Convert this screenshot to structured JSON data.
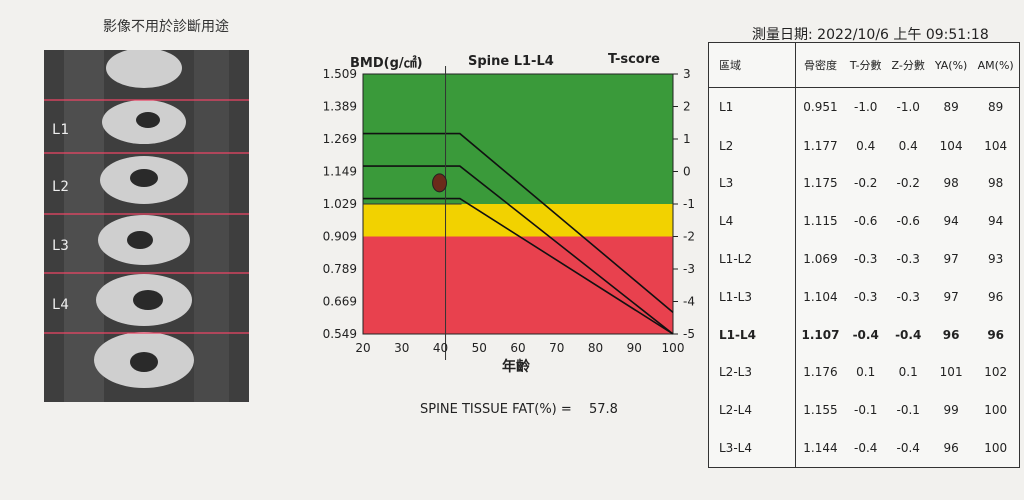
{
  "image_caption": "影像不用於診斷用途",
  "spine_levels": [
    "L1",
    "L2",
    "L3",
    "L4"
  ],
  "chart_data": {
    "type": "area",
    "title": "Spine L1-L4",
    "ylabel": "BMD(g/㎠)",
    "y2label": "T-score",
    "xlabel": "年齡",
    "x_ticks": [
      20,
      30,
      40,
      50,
      60,
      70,
      80,
      90,
      100
    ],
    "y_ticks": [
      "1.509",
      "1.389",
      "1.269",
      "1.149",
      "1.029",
      "0.909",
      "0.789",
      "0.669",
      "0.549"
    ],
    "y2_ticks": [
      "3",
      "2",
      "1",
      "0",
      "-1",
      "-2",
      "-3",
      "-4",
      "-5"
    ],
    "xlim": [
      20,
      100
    ],
    "ylim": [
      0.549,
      1.509
    ],
    "bands": [
      {
        "name": "normal",
        "from": 1.029,
        "to": 1.509,
        "color": "#3a9a3a"
      },
      {
        "name": "osteopenia",
        "from": 0.909,
        "to": 1.029,
        "color": "#f2d200"
      },
      {
        "name": "osteoporosis",
        "from": 0.549,
        "to": 0.909,
        "color": "#e8414e"
      }
    ],
    "reference_curves": [
      {
        "x": [
          20,
          45,
          100
        ],
        "y": [
          1.289,
          1.289,
          0.629
        ]
      },
      {
        "x": [
          20,
          45,
          100
        ],
        "y": [
          1.169,
          1.169,
          0.519
        ]
      },
      {
        "x": [
          20,
          45,
          100
        ],
        "y": [
          1.049,
          1.049,
          0.399
        ]
      }
    ],
    "patient_point": {
      "age": 41.3,
      "bmd": 1.107
    }
  },
  "fat": {
    "label": "SPINE TISSUE FAT(%) =",
    "value": "57.8"
  },
  "date": {
    "label": "測量日期:",
    "value": "2022/10/6 上午 09:51:18"
  },
  "table": {
    "headers": [
      "區域",
      "骨密度",
      "T-分數",
      "Z-分數",
      "YA(%)",
      "AM(%)"
    ],
    "rows": [
      {
        "region": "L1",
        "bmd": "0.951",
        "t": "-1.0",
        "z": "-1.0",
        "ya": "89",
        "am": "89"
      },
      {
        "region": "L2",
        "bmd": "1.177",
        "t": "0.4",
        "z": "0.4",
        "ya": "104",
        "am": "104"
      },
      {
        "region": "L3",
        "bmd": "1.175",
        "t": "-0.2",
        "z": "-0.2",
        "ya": "98",
        "am": "98"
      },
      {
        "region": "L4",
        "bmd": "1.115",
        "t": "-0.6",
        "z": "-0.6",
        "ya": "94",
        "am": "94"
      },
      {
        "region": "L1-L2",
        "bmd": "1.069",
        "t": "-0.3",
        "z": "-0.3",
        "ya": "97",
        "am": "93"
      },
      {
        "region": "L1-L3",
        "bmd": "1.104",
        "t": "-0.3",
        "z": "-0.3",
        "ya": "97",
        "am": "96"
      },
      {
        "region": "L1-L4",
        "bmd": "1.107",
        "t": "-0.4",
        "z": "-0.4",
        "ya": "96",
        "am": "96",
        "bold": true
      },
      {
        "region": "L2-L3",
        "bmd": "1.176",
        "t": "0.1",
        "z": "0.1",
        "ya": "101",
        "am": "102"
      },
      {
        "region": "L2-L4",
        "bmd": "1.155",
        "t": "-0.1",
        "z": "-0.1",
        "ya": "99",
        "am": "100"
      },
      {
        "region": "L3-L4",
        "bmd": "1.144",
        "t": "-0.4",
        "z": "-0.4",
        "ya": "96",
        "am": "100"
      }
    ]
  }
}
